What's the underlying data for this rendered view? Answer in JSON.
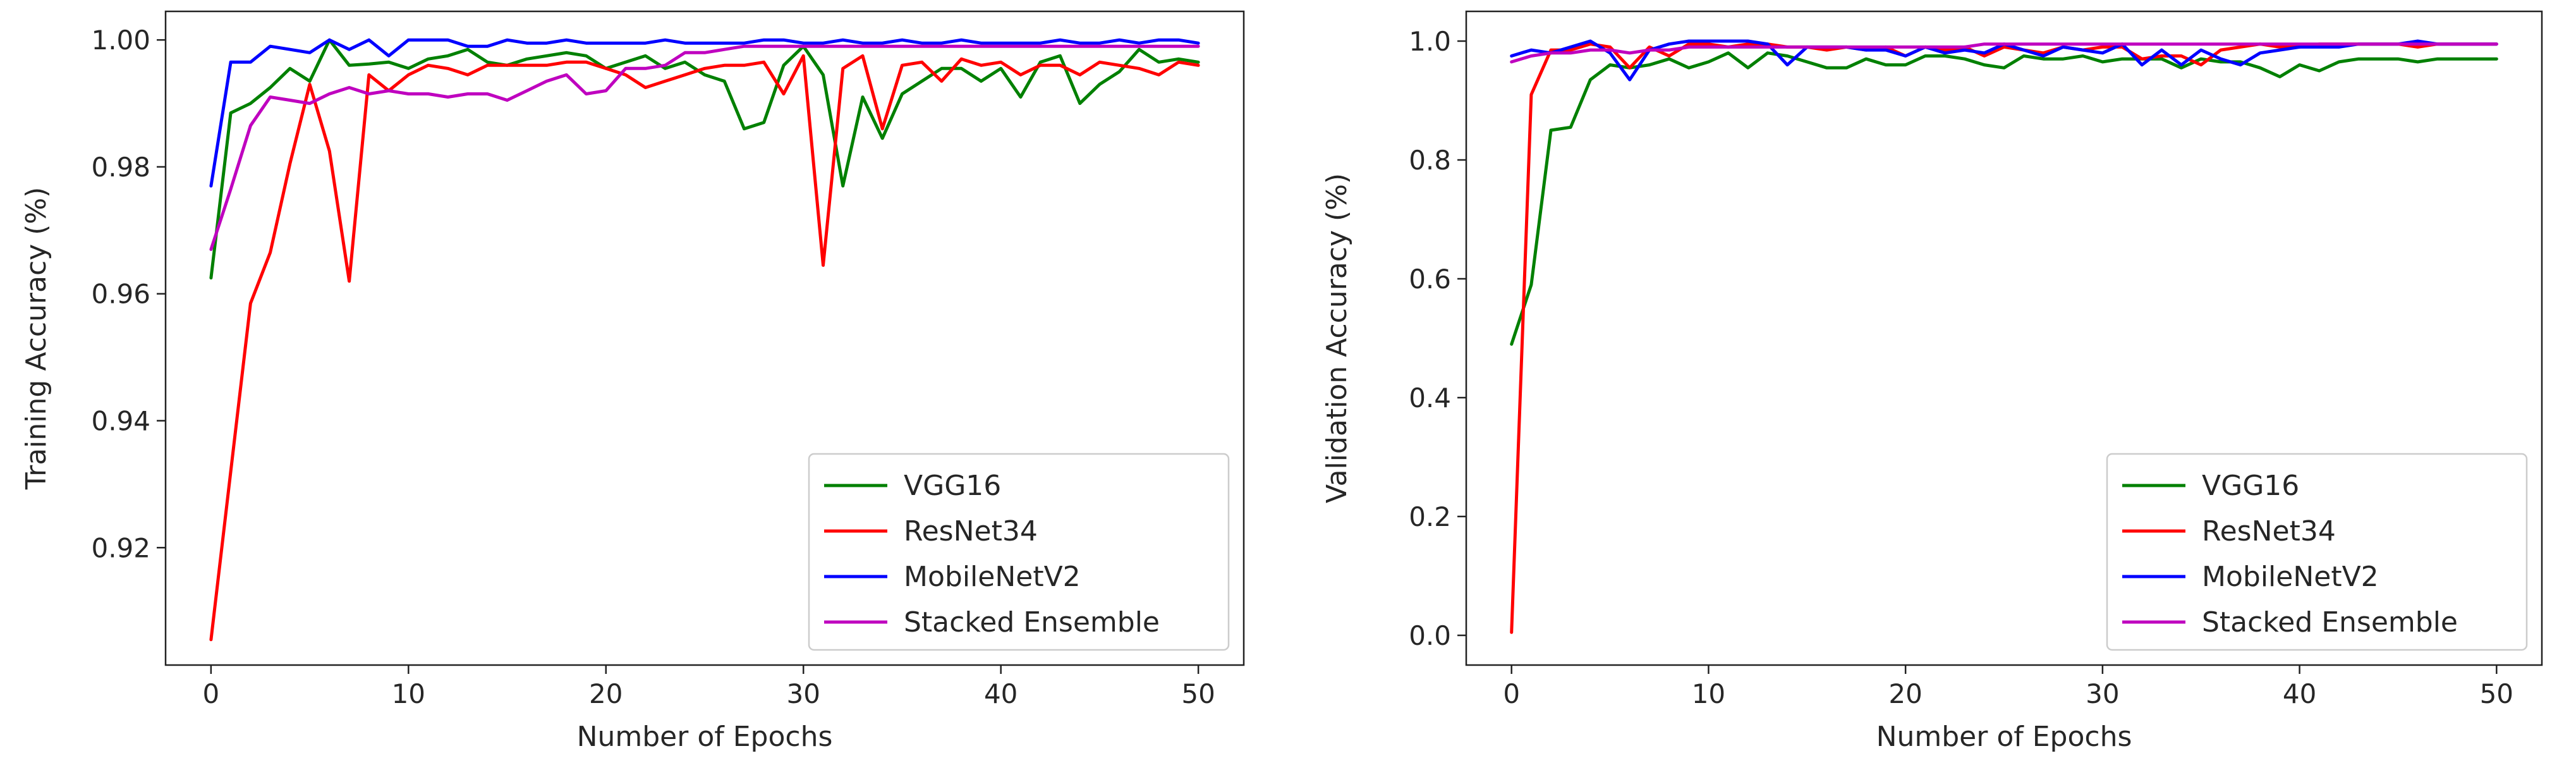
{
  "chart_data": [
    {
      "type": "line",
      "title": "",
      "xlabel": "Number of Epochs",
      "ylabel": "Training Accuracy (%)",
      "xlim": [
        -2.3,
        52.3
      ],
      "ylim": [
        0.9015,
        1.0045
      ],
      "xticks": [
        0,
        10,
        20,
        30,
        40,
        50
      ],
      "yticks": [
        0.92,
        0.94,
        0.96,
        0.98,
        1.0
      ],
      "ytick_labels": [
        "0.92",
        "0.94",
        "0.96",
        "0.98",
        "1.00"
      ],
      "legend_position": "lower-right",
      "x": [
        0,
        1,
        2,
        3,
        4,
        5,
        6,
        7,
        8,
        9,
        10,
        11,
        12,
        13,
        14,
        15,
        16,
        17,
        18,
        19,
        20,
        21,
        22,
        23,
        24,
        25,
        26,
        27,
        28,
        29,
        30,
        31,
        32,
        33,
        34,
        35,
        36,
        37,
        38,
        39,
        40,
        41,
        42,
        43,
        44,
        45,
        46,
        47,
        48,
        49,
        50
      ],
      "series": [
        {
          "name": "VGG16",
          "color": "#008000",
          "values": [
            0.9625,
            0.9885,
            0.99,
            0.9925,
            0.9955,
            0.9935,
            1.0,
            0.996,
            0.9962,
            0.9965,
            0.9955,
            0.997,
            0.9975,
            0.9985,
            0.9965,
            0.996,
            0.997,
            0.9975,
            0.998,
            0.9975,
            0.9955,
            0.9965,
            0.9975,
            0.9955,
            0.9965,
            0.9945,
            0.9935,
            0.986,
            0.987,
            0.996,
            0.999,
            0.9945,
            0.977,
            0.991,
            0.9845,
            0.9915,
            0.9935,
            0.9955,
            0.9955,
            0.9935,
            0.9955,
            0.991,
            0.9965,
            0.9975,
            0.99,
            0.993,
            0.995,
            0.9985,
            0.9965,
            0.997,
            0.9965
          ]
        },
        {
          "name": "ResNet34",
          "color": "#ff0000",
          "values": [
            0.9055,
            0.932,
            0.9585,
            0.9665,
            0.9805,
            0.993,
            0.9825,
            0.962,
            0.9945,
            0.992,
            0.9945,
            0.996,
            0.9955,
            0.9945,
            0.996,
            0.996,
            0.996,
            0.996,
            0.9965,
            0.9965,
            0.9955,
            0.9945,
            0.9925,
            0.9935,
            0.9945,
            0.9955,
            0.996,
            0.996,
            0.9965,
            0.9915,
            0.9975,
            0.9645,
            0.9955,
            0.9975,
            0.986,
            0.996,
            0.9965,
            0.9935,
            0.997,
            0.996,
            0.9965,
            0.9945,
            0.996,
            0.996,
            0.9945,
            0.9965,
            0.996,
            0.9955,
            0.9945,
            0.9965,
            0.996
          ]
        },
        {
          "name": "MobileNetV2",
          "color": "#0000ff",
          "values": [
            0.977,
            0.9965,
            0.9965,
            0.999,
            0.9985,
            0.998,
            1.0,
            0.9985,
            1.0,
            0.9975,
            1.0,
            1.0,
            1.0,
            0.999,
            0.999,
            1.0,
            0.9995,
            0.9995,
            1.0,
            0.9995,
            0.9995,
            0.9995,
            0.9995,
            1.0,
            0.9995,
            0.9995,
            0.9995,
            0.9995,
            1.0,
            1.0,
            0.9995,
            0.9995,
            1.0,
            0.9995,
            0.9995,
            1.0,
            0.9995,
            0.9995,
            1.0,
            0.9995,
            0.9995,
            0.9995,
            0.9995,
            1.0,
            0.9995,
            0.9995,
            1.0,
            0.9995,
            1.0,
            1.0,
            0.9995
          ]
        },
        {
          "name": "Stacked Ensemble",
          "color": "#bf00bf",
          "values": [
            0.967,
            0.9765,
            0.9865,
            0.991,
            0.9905,
            0.99,
            0.9915,
            0.9925,
            0.9915,
            0.992,
            0.9915,
            0.9915,
            0.991,
            0.9915,
            0.9915,
            0.9905,
            0.992,
            0.9935,
            0.9945,
            0.9915,
            0.992,
            0.9955,
            0.9955,
            0.996,
            0.998,
            0.998,
            0.9985,
            0.999,
            0.999,
            0.999,
            0.999,
            0.999,
            0.999,
            0.999,
            0.999,
            0.999,
            0.999,
            0.999,
            0.999,
            0.999,
            0.999,
            0.999,
            0.999,
            0.999,
            0.999,
            0.999,
            0.999,
            0.999,
            0.999,
            0.999,
            0.999
          ]
        }
      ]
    },
    {
      "type": "line",
      "title": "",
      "xlabel": "Number of Epochs",
      "ylabel": "Validation Accuracy (%)",
      "xlim": [
        -2.3,
        52.3
      ],
      "ylim": [
        -0.05,
        1.05
      ],
      "xticks": [
        0,
        10,
        20,
        30,
        40,
        50
      ],
      "yticks": [
        0.0,
        0.2,
        0.4,
        0.6,
        0.8,
        1.0
      ],
      "ytick_labels": [
        "0.0",
        "0.2",
        "0.4",
        "0.6",
        "0.8",
        "1.0"
      ],
      "legend_position": "lower-right",
      "x": [
        0,
        1,
        2,
        3,
        4,
        5,
        6,
        7,
        8,
        9,
        10,
        11,
        12,
        13,
        14,
        15,
        16,
        17,
        18,
        19,
        20,
        21,
        22,
        23,
        24,
        25,
        26,
        27,
        28,
        29,
        30,
        31,
        32,
        33,
        34,
        35,
        36,
        37,
        38,
        39,
        40,
        41,
        42,
        43,
        44,
        45,
        46,
        47,
        48,
        49,
        50
      ],
      "series": [
        {
          "name": "VGG16",
          "color": "#008000",
          "values": [
            0.49,
            0.59,
            0.85,
            0.855,
            0.935,
            0.96,
            0.955,
            0.96,
            0.97,
            0.955,
            0.965,
            0.98,
            0.955,
            0.98,
            0.975,
            0.965,
            0.955,
            0.955,
            0.97,
            0.96,
            0.96,
            0.975,
            0.975,
            0.97,
            0.96,
            0.955,
            0.975,
            0.97,
            0.97,
            0.975,
            0.965,
            0.97,
            0.97,
            0.97,
            0.955,
            0.97,
            0.965,
            0.965,
            0.955,
            0.94,
            0.96,
            0.95,
            0.965,
            0.97,
            0.97,
            0.97,
            0.965,
            0.97,
            0.97,
            0.97,
            0.97
          ]
        },
        {
          "name": "ResNet34",
          "color": "#ff0000",
          "values": [
            0.005,
            0.91,
            0.985,
            0.985,
            0.995,
            0.99,
            0.955,
            0.99,
            0.975,
            0.995,
            0.995,
            0.99,
            0.995,
            0.995,
            0.99,
            0.99,
            0.985,
            0.99,
            0.985,
            0.99,
            0.975,
            0.99,
            0.985,
            0.99,
            0.975,
            0.99,
            0.985,
            0.98,
            0.99,
            0.985,
            0.99,
            0.99,
            0.97,
            0.975,
            0.975,
            0.96,
            0.985,
            0.99,
            0.995,
            0.99,
            0.99,
            0.995,
            0.995,
            0.995,
            0.995,
            0.995,
            0.99,
            0.995,
            0.995,
            0.995,
            0.995
          ]
        },
        {
          "name": "MobileNetV2",
          "color": "#0000ff",
          "values": [
            0.975,
            0.985,
            0.98,
            0.99,
            1.0,
            0.98,
            0.935,
            0.985,
            0.995,
            1.0,
            1.0,
            1.0,
            1.0,
            0.995,
            0.96,
            0.99,
            0.99,
            0.99,
            0.985,
            0.985,
            0.975,
            0.99,
            0.98,
            0.985,
            0.98,
            0.995,
            0.985,
            0.975,
            0.99,
            0.985,
            0.98,
            0.995,
            0.96,
            0.985,
            0.96,
            0.985,
            0.97,
            0.96,
            0.98,
            0.985,
            0.99,
            0.99,
            0.99,
            0.995,
            0.995,
            0.995,
            1.0,
            0.995,
            0.995,
            0.995,
            0.995
          ]
        },
        {
          "name": "Stacked Ensemble",
          "color": "#bf00bf",
          "values": [
            0.965,
            0.975,
            0.98,
            0.98,
            0.985,
            0.985,
            0.98,
            0.985,
            0.985,
            0.99,
            0.99,
            0.99,
            0.99,
            0.99,
            0.99,
            0.99,
            0.99,
            0.99,
            0.99,
            0.99,
            0.99,
            0.99,
            0.99,
            0.99,
            0.995,
            0.995,
            0.995,
            0.995,
            0.995,
            0.995,
            0.995,
            0.995,
            0.995,
            0.995,
            0.995,
            0.995,
            0.995,
            0.995,
            0.995,
            0.995,
            0.995,
            0.995,
            0.995,
            0.995,
            0.995,
            0.995,
            0.995,
            0.995,
            0.995,
            0.995,
            0.995
          ]
        }
      ]
    }
  ]
}
